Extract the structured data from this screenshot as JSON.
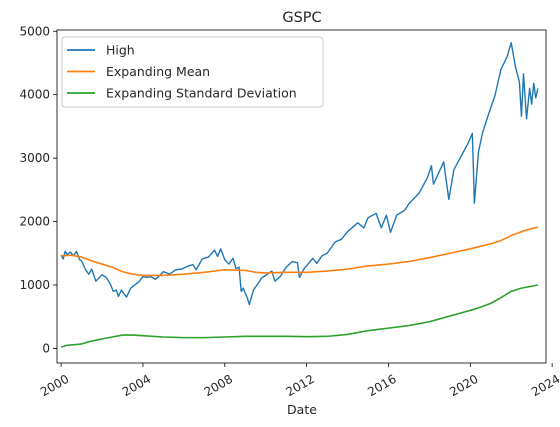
{
  "chart_data": {
    "type": "line",
    "title": "GSPC",
    "xlabel": "Date",
    "ylabel": "",
    "xlim": [
      1999.8,
      2023.7
    ],
    "ylim": [
      -230,
      5020
    ],
    "x_ticks": [
      2000,
      2004,
      2008,
      2012,
      2016,
      2020,
      2024
    ],
    "y_ticks": [
      0,
      1000,
      2000,
      3000,
      4000,
      5000
    ],
    "grid": false,
    "legend_position": "upper-left",
    "series": [
      {
        "name": "High",
        "color": "#1f77b4",
        "points": [
          [
            2000.0,
            1470
          ],
          [
            2000.1,
            1410
          ],
          [
            2000.2,
            1530
          ],
          [
            2000.3,
            1480
          ],
          [
            2000.45,
            1520
          ],
          [
            2000.6,
            1460
          ],
          [
            2000.75,
            1530
          ],
          [
            2000.9,
            1400
          ],
          [
            2001.0,
            1380
          ],
          [
            2001.2,
            1240
          ],
          [
            2001.35,
            1170
          ],
          [
            2001.5,
            1250
          ],
          [
            2001.7,
            1060
          ],
          [
            2001.85,
            1110
          ],
          [
            2002.0,
            1160
          ],
          [
            2002.2,
            1120
          ],
          [
            2002.4,
            1020
          ],
          [
            2002.55,
            900
          ],
          [
            2002.7,
            920
          ],
          [
            2002.8,
            820
          ],
          [
            2002.95,
            920
          ],
          [
            2003.1,
            850
          ],
          [
            2003.2,
            810
          ],
          [
            2003.4,
            950
          ],
          [
            2003.6,
            1000
          ],
          [
            2003.8,
            1050
          ],
          [
            2004.0,
            1130
          ],
          [
            2004.2,
            1120
          ],
          [
            2004.4,
            1130
          ],
          [
            2004.6,
            1090
          ],
          [
            2004.8,
            1140
          ],
          [
            2005.0,
            1210
          ],
          [
            2005.3,
            1170
          ],
          [
            2005.6,
            1240
          ],
          [
            2005.9,
            1250
          ],
          [
            2006.2,
            1300
          ],
          [
            2006.45,
            1320
          ],
          [
            2006.6,
            1240
          ],
          [
            2006.9,
            1410
          ],
          [
            2007.2,
            1440
          ],
          [
            2007.5,
            1550
          ],
          [
            2007.65,
            1450
          ],
          [
            2007.8,
            1570
          ],
          [
            2008.0,
            1400
          ],
          [
            2008.2,
            1330
          ],
          [
            2008.4,
            1420
          ],
          [
            2008.55,
            1260
          ],
          [
            2008.7,
            1280
          ],
          [
            2008.8,
            900
          ],
          [
            2008.9,
            950
          ],
          [
            2009.0,
            870
          ],
          [
            2009.1,
            800
          ],
          [
            2009.2,
            690
          ],
          [
            2009.4,
            920
          ],
          [
            2009.6,
            1010
          ],
          [
            2009.8,
            1110
          ],
          [
            2010.0,
            1150
          ],
          [
            2010.3,
            1220
          ],
          [
            2010.45,
            1060
          ],
          [
            2010.7,
            1130
          ],
          [
            2011.0,
            1280
          ],
          [
            2011.3,
            1370
          ],
          [
            2011.55,
            1350
          ],
          [
            2011.65,
            1120
          ],
          [
            2011.9,
            1270
          ],
          [
            2012.0,
            1300
          ],
          [
            2012.3,
            1420
          ],
          [
            2012.5,
            1340
          ],
          [
            2012.75,
            1460
          ],
          [
            2013.0,
            1500
          ],
          [
            2013.4,
            1680
          ],
          [
            2013.7,
            1720
          ],
          [
            2014.0,
            1840
          ],
          [
            2014.5,
            1980
          ],
          [
            2014.8,
            1900
          ],
          [
            2015.0,
            2060
          ],
          [
            2015.4,
            2130
          ],
          [
            2015.65,
            1900
          ],
          [
            2015.9,
            2100
          ],
          [
            2016.1,
            1830
          ],
          [
            2016.4,
            2100
          ],
          [
            2016.8,
            2180
          ],
          [
            2017.0,
            2280
          ],
          [
            2017.5,
            2450
          ],
          [
            2017.9,
            2690
          ],
          [
            2018.1,
            2880
          ],
          [
            2018.2,
            2590
          ],
          [
            2018.7,
            2940
          ],
          [
            2018.95,
            2350
          ],
          [
            2019.2,
            2820
          ],
          [
            2019.5,
            3000
          ],
          [
            2019.9,
            3240
          ],
          [
            2020.1,
            3390
          ],
          [
            2020.2,
            2290
          ],
          [
            2020.4,
            3100
          ],
          [
            2020.6,
            3400
          ],
          [
            2020.9,
            3700
          ],
          [
            2021.2,
            3980
          ],
          [
            2021.5,
            4400
          ],
          [
            2021.8,
            4600
          ],
          [
            2022.0,
            4820
          ],
          [
            2022.2,
            4450
          ],
          [
            2022.4,
            4200
          ],
          [
            2022.5,
            3660
          ],
          [
            2022.6,
            4330
          ],
          [
            2022.75,
            3620
          ],
          [
            2022.9,
            4100
          ],
          [
            2023.0,
            3850
          ],
          [
            2023.1,
            4180
          ],
          [
            2023.2,
            3950
          ],
          [
            2023.3,
            4100
          ]
        ]
      },
      {
        "name": "Expanding Mean",
        "color": "#ff7f0e",
        "points": [
          [
            2000.0,
            1460
          ],
          [
            2000.5,
            1470
          ],
          [
            2001.0,
            1440
          ],
          [
            2001.5,
            1380
          ],
          [
            2002.0,
            1330
          ],
          [
            2002.5,
            1280
          ],
          [
            2003.0,
            1210
          ],
          [
            2003.5,
            1170
          ],
          [
            2004.0,
            1150
          ],
          [
            2005.0,
            1150
          ],
          [
            2006.0,
            1170
          ],
          [
            2007.0,
            1200
          ],
          [
            2008.0,
            1240
          ],
          [
            2009.0,
            1230
          ],
          [
            2009.5,
            1200
          ],
          [
            2010.0,
            1190
          ],
          [
            2011.0,
            1200
          ],
          [
            2012.0,
            1200
          ],
          [
            2013.0,
            1220
          ],
          [
            2014.0,
            1250
          ],
          [
            2015.0,
            1300
          ],
          [
            2016.0,
            1330
          ],
          [
            2017.0,
            1370
          ],
          [
            2018.0,
            1430
          ],
          [
            2019.0,
            1500
          ],
          [
            2020.0,
            1570
          ],
          [
            2021.0,
            1650
          ],
          [
            2021.5,
            1700
          ],
          [
            2022.0,
            1780
          ],
          [
            2022.5,
            1840
          ],
          [
            2023.0,
            1890
          ],
          [
            2023.3,
            1910
          ]
        ]
      },
      {
        "name": "Expanding Standard Deviation",
        "color": "#2ca02c",
        "points": [
          [
            2000.0,
            20
          ],
          [
            2000.3,
            50
          ],
          [
            2000.7,
            60
          ],
          [
            2001.0,
            70
          ],
          [
            2001.3,
            100
          ],
          [
            2001.7,
            130
          ],
          [
            2002.0,
            150
          ],
          [
            2002.5,
            180
          ],
          [
            2003.0,
            210
          ],
          [
            2003.5,
            210
          ],
          [
            2004.0,
            200
          ],
          [
            2005.0,
            180
          ],
          [
            2006.0,
            170
          ],
          [
            2007.0,
            170
          ],
          [
            2008.0,
            180
          ],
          [
            2009.0,
            190
          ],
          [
            2010.0,
            190
          ],
          [
            2011.0,
            190
          ],
          [
            2012.0,
            185
          ],
          [
            2013.0,
            190
          ],
          [
            2014.0,
            220
          ],
          [
            2015.0,
            280
          ],
          [
            2016.0,
            320
          ],
          [
            2017.0,
            360
          ],
          [
            2018.0,
            420
          ],
          [
            2019.0,
            510
          ],
          [
            2020.0,
            600
          ],
          [
            2020.5,
            650
          ],
          [
            2021.0,
            710
          ],
          [
            2021.5,
            800
          ],
          [
            2022.0,
            900
          ],
          [
            2022.5,
            950
          ],
          [
            2023.0,
            980
          ],
          [
            2023.3,
            1000
          ]
        ]
      }
    ]
  }
}
